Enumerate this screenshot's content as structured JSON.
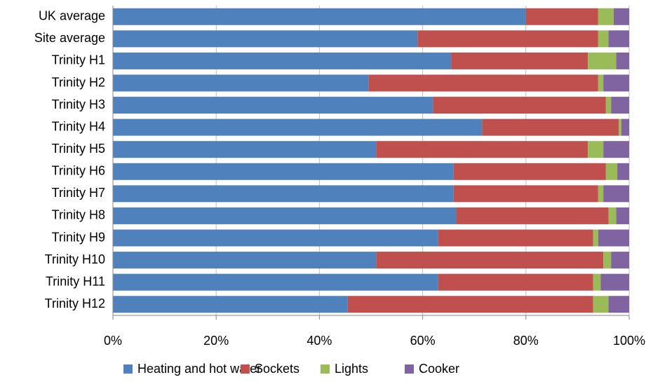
{
  "chart_data": {
    "type": "stacked_barh",
    "categories": [
      "UK average",
      "Site average",
      "Trinity H1",
      "Trinity H2",
      "Trinity H3",
      "Trinity H4",
      "Trinity H5",
      "Trinity H6",
      "Trinity H7",
      "Trinity H8",
      "Trinity H9",
      "Trinity H10",
      "Trinity H11",
      "Trinity H12"
    ],
    "series": [
      {
        "name": "Heating and hot water",
        "color": "#4f81bd",
        "values": [
          80,
          59,
          65.5,
          49.5,
          62,
          71.5,
          51,
          66,
          66,
          66.5,
          63,
          51,
          63,
          45.5
        ]
      },
      {
        "name": "Sockets",
        "color": "#c0504d",
        "values": [
          14,
          35,
          26.5,
          44.5,
          33.5,
          26.5,
          41,
          29.5,
          28,
          29.5,
          30,
          44,
          30,
          47.5
        ]
      },
      {
        "name": "Lights",
        "color": "#9bbb59",
        "values": [
          3,
          2,
          5.5,
          1,
          1,
          0.5,
          3,
          2.2,
          1,
          1.5,
          1,
          1.5,
          1.5,
          3
        ]
      },
      {
        "name": "Cooker",
        "color": "#8064a2",
        "values": [
          3,
          4,
          2.5,
          5,
          3.5,
          1.5,
          5,
          2.3,
          5,
          2.5,
          6,
          3.5,
          5.5,
          4
        ]
      }
    ],
    "xlim": [
      0,
      100
    ],
    "xticks": [
      {
        "value": 0,
        "label": "0%"
      },
      {
        "value": 20,
        "label": "20%"
      },
      {
        "value": 40,
        "label": "40%"
      },
      {
        "value": 60,
        "label": "60%"
      },
      {
        "value": 80,
        "label": "80%"
      },
      {
        "value": 100,
        "label": "100%"
      }
    ],
    "grid": true,
    "legend": "bottom"
  }
}
